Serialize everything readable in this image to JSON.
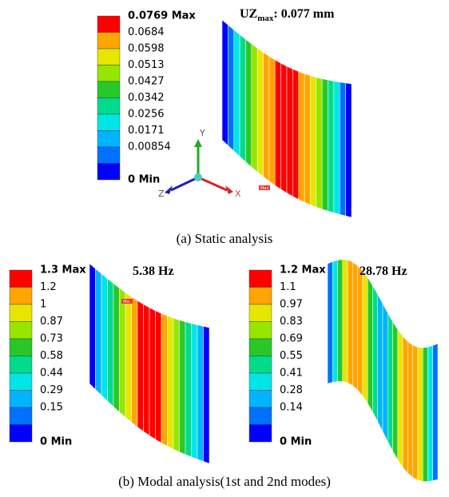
{
  "panel_a": {
    "legend": [
      "0.0769 Max",
      "0.0684",
      "0.0598",
      "0.0513",
      "0.0427",
      "0.0342",
      "0.0256",
      "0.0171",
      "0.00854",
      "0 Min"
    ],
    "annotation": {
      "main": "UZ",
      "sub": "max",
      "rest": ": 0.077 mm"
    },
    "axes": {
      "y": "Y",
      "z": "Z",
      "x": "X"
    },
    "marker": "Max",
    "caption": "(a)  Static analysis"
  },
  "panel_b": [
    {
      "legend": [
        "1.3 Max",
        "1.2",
        "1",
        "0.87",
        "0.73",
        "0.58",
        "0.44",
        "0.29",
        "0.15",
        "0 Min"
      ],
      "annotation": "5.38 Hz",
      "marker": "Min"
    },
    {
      "legend": [
        "1.2 Max",
        "1.1",
        "0.97",
        "0.83",
        "0.69",
        "0.55",
        "0.41",
        "0.28",
        "0.14",
        "0 Min"
      ],
      "annotation": "28.78 Hz"
    }
  ],
  "caption_b": "(b)  Modal analysis(1st and 2nd modes)"
}
